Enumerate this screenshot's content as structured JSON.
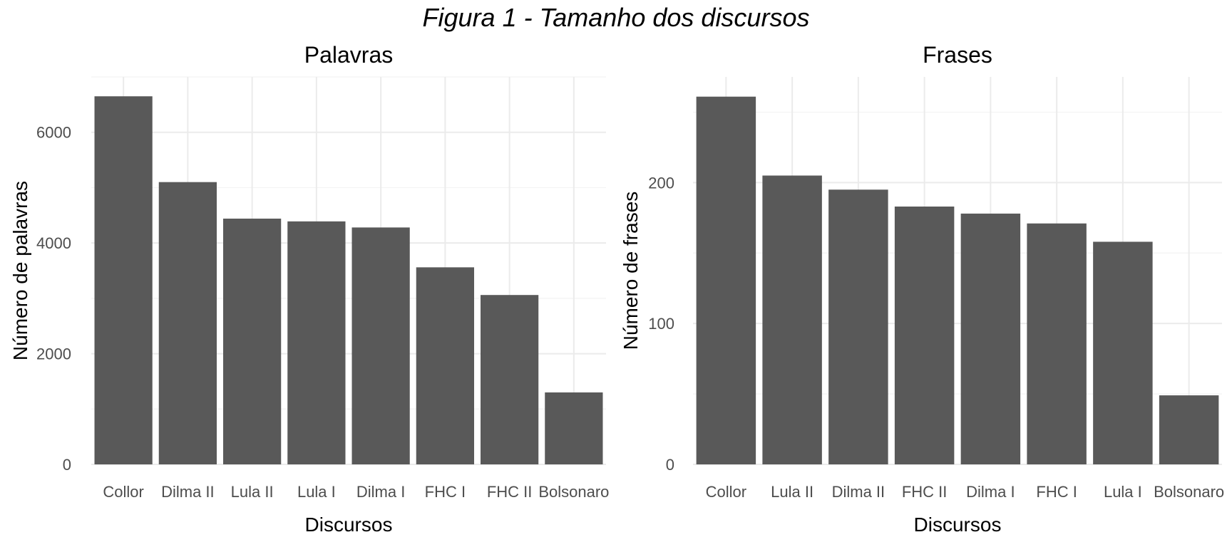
{
  "figure_title": "Figura 1 - Tamanho dos discursos",
  "chart_data": [
    {
      "type": "bar",
      "title": "Palavras",
      "xlabel": "Discursos",
      "ylabel": "Número de palavras",
      "categories": [
        "Collor",
        "Dilma II",
        "Lula II",
        "Lula I",
        "Dilma I",
        "FHC I",
        "FHC II",
        "Bolsonaro"
      ],
      "values": [
        6650,
        5100,
        4440,
        4390,
        4280,
        3560,
        3060,
        1300
      ],
      "ylim": [
        0,
        7000
      ],
      "yticks": [
        0,
        2000,
        4000,
        6000
      ],
      "ytick_labels": [
        "0",
        "2000",
        "4000",
        "6000"
      ],
      "grid": true,
      "bar_color": "#595959"
    },
    {
      "type": "bar",
      "title": "Frases",
      "xlabel": "Discursos",
      "ylabel": "Número de frases",
      "categories": [
        "Collor",
        "Lula II",
        "Dilma II",
        "FHC II",
        "Dilma I",
        "FHC I",
        "Lula I",
        "Bolsonaro"
      ],
      "values": [
        261,
        205,
        195,
        183,
        178,
        171,
        158,
        49
      ],
      "ylim": [
        0,
        275
      ],
      "yticks": [
        0,
        100,
        200
      ],
      "ytick_labels": [
        "0",
        "100",
        "200"
      ],
      "grid": true,
      "bar_color": "#595959"
    }
  ]
}
